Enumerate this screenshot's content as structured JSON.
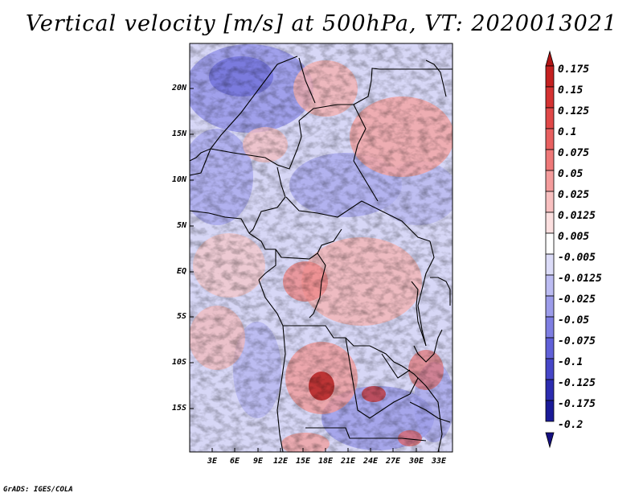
{
  "title": "Vertical velocity [m/s] at 500hPa, VT: 2020013021",
  "credit": "GrADS: IGES/COLA",
  "map": {
    "lat_labels": [
      "20N",
      "15N",
      "10N",
      "5N",
      "EQ",
      "5S",
      "10S",
      "15S"
    ],
    "lon_labels": [
      "3E",
      "6E",
      "9E",
      "12E",
      "15E",
      "18E",
      "21E",
      "24E",
      "27E",
      "30E",
      "33E"
    ]
  },
  "colorbar": {
    "labels": [
      "0.175",
      "0.15",
      "0.125",
      "0.1",
      "0.075",
      "0.05",
      "0.025",
      "0.0125",
      "0.005",
      "-0.005",
      "-0.0125",
      "-0.025",
      "-0.05",
      "-0.075",
      "-0.1",
      "-0.125",
      "-0.175",
      "-0.2"
    ],
    "colors": [
      "#b01515",
      "#c42020",
      "#d43232",
      "#e04848",
      "#e86060",
      "#ee7878",
      "#f49c9c",
      "#f8c0c0",
      "#fce0e0",
      "#ffffff",
      "#dcdcf8",
      "#bcbcf2",
      "#9c9cea",
      "#7e7ee2",
      "#6060d8",
      "#4646c8",
      "#2c2cb0",
      "#1a1a98",
      "#140f80"
    ]
  }
}
